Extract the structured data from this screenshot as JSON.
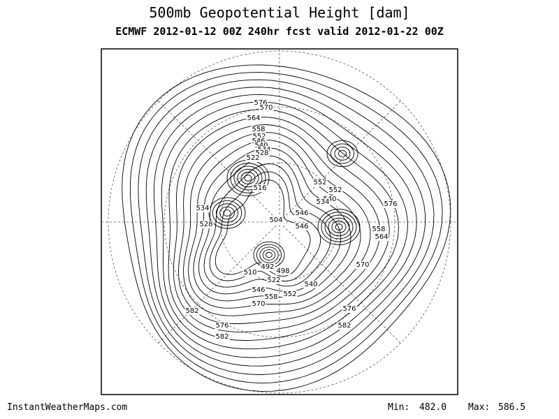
{
  "header": {
    "title": "500mb Geopotential Height [dam]",
    "subtitle": "ECMWF 2012-01-12 00Z 240hr fcst valid 2012-01-22 00Z"
  },
  "map": {
    "contour_labels": [
      "576",
      "570",
      "564",
      "558",
      "552",
      "546",
      "540",
      "534",
      "528",
      "522",
      "516",
      "534",
      "528",
      "504",
      "510",
      "492",
      "498",
      "522",
      "546",
      "558",
      "552",
      "570",
      "576",
      "582",
      "582",
      "576",
      "582",
      "552",
      "552",
      "540",
      "546",
      "546",
      "534",
      "558",
      "564",
      "576",
      "570",
      "540"
    ]
  },
  "footer": {
    "source": "InstantWeatherMaps.com",
    "min_label": "Min:",
    "min_value": "482.0",
    "max_label": "Max:",
    "max_value": "586.5"
  }
}
